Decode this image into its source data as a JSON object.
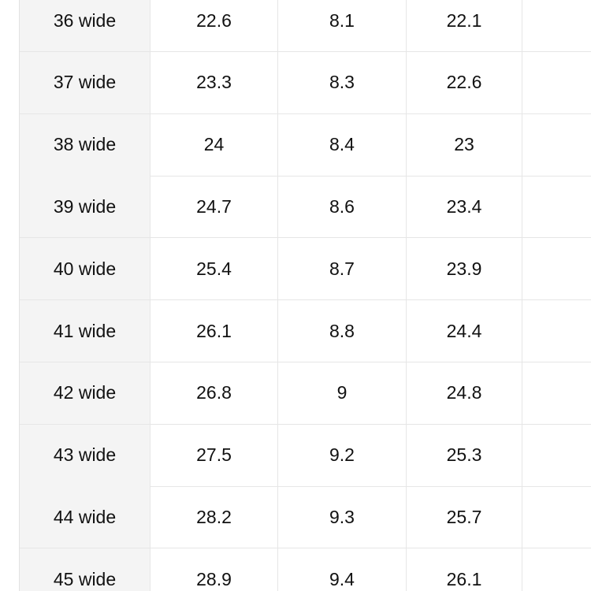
{
  "table": {
    "rows": [
      [
        "36 wide",
        "22.6",
        "8.1",
        "22.1"
      ],
      [
        "37 wide",
        "23.3",
        "8.3",
        "22.6"
      ],
      [
        "38 wide",
        "24",
        "8.4",
        "23"
      ],
      [
        "39 wide",
        "24.7",
        "8.6",
        "23.4"
      ],
      [
        "40 wide",
        "25.4",
        "8.7",
        "23.9"
      ],
      [
        "41 wide",
        "26.1",
        "8.8",
        "24.4"
      ],
      [
        "42 wide",
        "26.8",
        "9",
        "24.8"
      ],
      [
        "43 wide",
        "27.5",
        "9.2",
        "25.3"
      ],
      [
        "44 wide",
        "28.2",
        "9.3",
        "25.7"
      ],
      [
        "45 wide",
        "28.9",
        "9.4",
        "26.1"
      ]
    ]
  }
}
